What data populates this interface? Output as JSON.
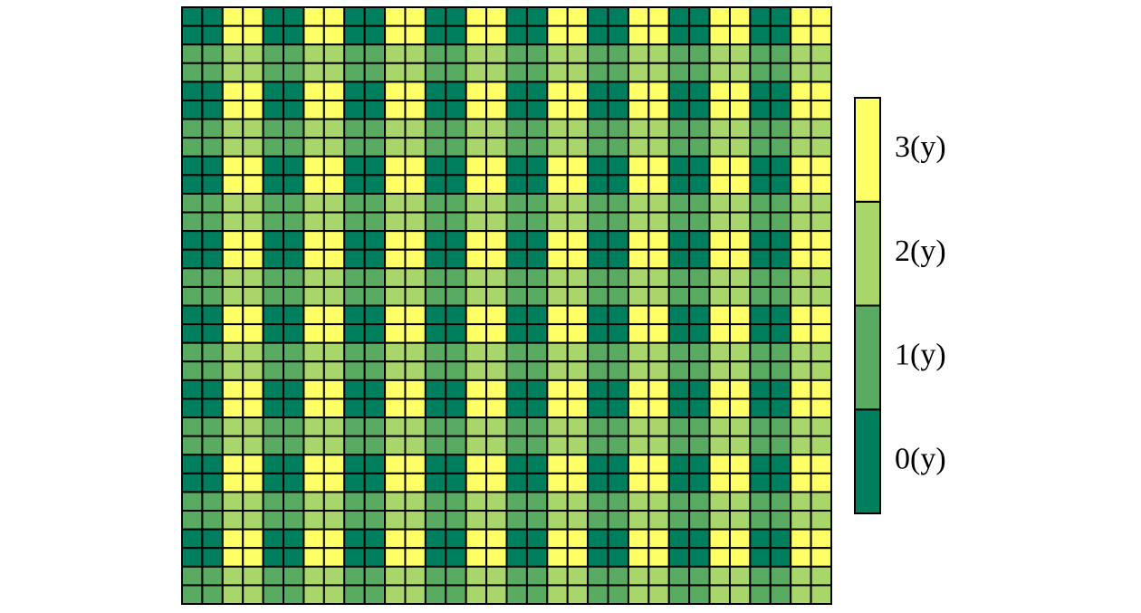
{
  "chart_data": {
    "type": "heatmap",
    "colors": [
      "#007f5f",
      "#5aab62",
      "#a8d66a",
      "#ffff66"
    ],
    "colorbar_ticks": [
      {
        "value": 0,
        "label": "0(y)"
      },
      {
        "value": 1,
        "label": "1(y)"
      },
      {
        "value": 2,
        "label": "2(y)"
      },
      {
        "value": 3,
        "label": "3(y)"
      }
    ],
    "z": [
      [
        0,
        0,
        3,
        3,
        0,
        0,
        3,
        3,
        0,
        0,
        3,
        3,
        0,
        0,
        3,
        3,
        0,
        0,
        3,
        3,
        0,
        0,
        3,
        3,
        0,
        0,
        3,
        3,
        0,
        0,
        3,
        3
      ],
      [
        0,
        0,
        3,
        3,
        0,
        0,
        3,
        3,
        0,
        0,
        3,
        3,
        0,
        0,
        3,
        3,
        0,
        0,
        3,
        3,
        0,
        0,
        3,
        3,
        0,
        0,
        3,
        3,
        0,
        0,
        3,
        3
      ],
      [
        1,
        1,
        2,
        2,
        1,
        1,
        2,
        2,
        1,
        1,
        2,
        2,
        1,
        1,
        2,
        2,
        1,
        1,
        2,
        2,
        1,
        1,
        2,
        2,
        1,
        1,
        2,
        2,
        1,
        1,
        2,
        2
      ],
      [
        1,
        1,
        2,
        2,
        1,
        1,
        2,
        2,
        1,
        1,
        2,
        2,
        1,
        1,
        2,
        2,
        1,
        1,
        2,
        2,
        1,
        1,
        2,
        2,
        1,
        1,
        2,
        2,
        1,
        1,
        2,
        2
      ],
      [
        0,
        0,
        3,
        3,
        0,
        0,
        3,
        3,
        0,
        0,
        3,
        3,
        0,
        0,
        3,
        3,
        0,
        0,
        3,
        3,
        0,
        0,
        3,
        3,
        0,
        0,
        3,
        3,
        0,
        0,
        3,
        3
      ],
      [
        0,
        0,
        3,
        3,
        0,
        0,
        3,
        3,
        0,
        0,
        3,
        3,
        0,
        0,
        3,
        3,
        0,
        0,
        3,
        3,
        0,
        0,
        3,
        3,
        0,
        0,
        3,
        3,
        0,
        0,
        3,
        3
      ],
      [
        1,
        1,
        2,
        2,
        1,
        1,
        2,
        2,
        1,
        1,
        2,
        2,
        1,
        1,
        2,
        2,
        1,
        1,
        2,
        2,
        1,
        1,
        2,
        2,
        1,
        1,
        2,
        2,
        1,
        1,
        2,
        2
      ],
      [
        1,
        1,
        2,
        2,
        1,
        1,
        2,
        2,
        1,
        1,
        2,
        2,
        1,
        1,
        2,
        2,
        1,
        1,
        2,
        2,
        1,
        1,
        2,
        2,
        1,
        1,
        2,
        2,
        1,
        1,
        2,
        2
      ],
      [
        0,
        0,
        3,
        3,
        0,
        0,
        3,
        3,
        0,
        0,
        3,
        3,
        0,
        0,
        3,
        3,
        0,
        0,
        3,
        3,
        0,
        0,
        3,
        3,
        0,
        0,
        3,
        3,
        0,
        0,
        3,
        3
      ],
      [
        0,
        0,
        3,
        3,
        0,
        0,
        3,
        3,
        0,
        0,
        3,
        3,
        0,
        0,
        3,
        3,
        0,
        0,
        3,
        3,
        0,
        0,
        3,
        3,
        0,
        0,
        3,
        3,
        0,
        0,
        3,
        3
      ],
      [
        1,
        1,
        2,
        2,
        1,
        1,
        2,
        2,
        1,
        1,
        2,
        2,
        1,
        1,
        2,
        2,
        1,
        1,
        2,
        2,
        1,
        1,
        2,
        2,
        1,
        1,
        2,
        2,
        1,
        1,
        2,
        2
      ],
      [
        1,
        1,
        2,
        2,
        1,
        1,
        2,
        2,
        1,
        1,
        2,
        2,
        1,
        1,
        2,
        2,
        1,
        1,
        2,
        2,
        1,
        1,
        2,
        2,
        1,
        1,
        2,
        2,
        1,
        1,
        2,
        2
      ],
      [
        0,
        0,
        3,
        3,
        0,
        0,
        3,
        3,
        0,
        0,
        3,
        3,
        0,
        0,
        3,
        3,
        0,
        0,
        3,
        3,
        0,
        0,
        3,
        3,
        0,
        0,
        3,
        3,
        0,
        0,
        3,
        3
      ],
      [
        0,
        0,
        3,
        3,
        0,
        0,
        3,
        3,
        0,
        0,
        3,
        3,
        0,
        0,
        3,
        3,
        0,
        0,
        3,
        3,
        0,
        0,
        3,
        3,
        0,
        0,
        3,
        3,
        0,
        0,
        3,
        3
      ],
      [
        1,
        1,
        2,
        2,
        1,
        1,
        2,
        2,
        1,
        1,
        2,
        2,
        1,
        1,
        2,
        2,
        1,
        1,
        2,
        2,
        1,
        1,
        2,
        2,
        1,
        1,
        2,
        2,
        1,
        1,
        2,
        2
      ],
      [
        1,
        1,
        2,
        2,
        1,
        1,
        2,
        2,
        1,
        1,
        2,
        2,
        1,
        1,
        2,
        2,
        1,
        1,
        2,
        2,
        1,
        1,
        2,
        2,
        1,
        1,
        2,
        2,
        1,
        1,
        2,
        2
      ],
      [
        0,
        0,
        3,
        3,
        0,
        0,
        3,
        3,
        0,
        0,
        3,
        3,
        0,
        0,
        3,
        3,
        0,
        0,
        3,
        3,
        0,
        0,
        3,
        3,
        0,
        0,
        3,
        3,
        0,
        0,
        3,
        3
      ],
      [
        0,
        0,
        3,
        3,
        0,
        0,
        3,
        3,
        0,
        0,
        3,
        3,
        0,
        0,
        3,
        3,
        0,
        0,
        3,
        3,
        0,
        0,
        3,
        3,
        0,
        0,
        3,
        3,
        0,
        0,
        3,
        3
      ],
      [
        1,
        1,
        2,
        2,
        1,
        1,
        2,
        2,
        1,
        1,
        2,
        2,
        1,
        1,
        2,
        2,
        1,
        1,
        2,
        2,
        1,
        1,
        2,
        2,
        1,
        1,
        2,
        2,
        1,
        1,
        2,
        2
      ],
      [
        1,
        1,
        2,
        2,
        1,
        1,
        2,
        2,
        1,
        1,
        2,
        2,
        1,
        1,
        2,
        2,
        1,
        1,
        2,
        2,
        1,
        1,
        2,
        2,
        1,
        1,
        2,
        2,
        1,
        1,
        2,
        2
      ],
      [
        0,
        0,
        3,
        3,
        0,
        0,
        3,
        3,
        0,
        0,
        3,
        3,
        0,
        0,
        3,
        3,
        0,
        0,
        3,
        3,
        0,
        0,
        3,
        3,
        0,
        0,
        3,
        3,
        0,
        0,
        3,
        3
      ],
      [
        0,
        0,
        3,
        3,
        0,
        0,
        3,
        3,
        0,
        0,
        3,
        3,
        0,
        0,
        3,
        3,
        0,
        0,
        3,
        3,
        0,
        0,
        3,
        3,
        0,
        0,
        3,
        3,
        0,
        0,
        3,
        3
      ],
      [
        1,
        1,
        2,
        2,
        1,
        1,
        2,
        2,
        1,
        1,
        2,
        2,
        1,
        1,
        2,
        2,
        1,
        1,
        2,
        2,
        1,
        1,
        2,
        2,
        1,
        1,
        2,
        2,
        1,
        1,
        2,
        2
      ],
      [
        1,
        1,
        2,
        2,
        1,
        1,
        2,
        2,
        1,
        1,
        2,
        2,
        1,
        1,
        2,
        2,
        1,
        1,
        2,
        2,
        1,
        1,
        2,
        2,
        1,
        1,
        2,
        2,
        1,
        1,
        2,
        2
      ],
      [
        0,
        0,
        3,
        3,
        0,
        0,
        3,
        3,
        0,
        0,
        3,
        3,
        0,
        0,
        3,
        3,
        0,
        0,
        3,
        3,
        0,
        0,
        3,
        3,
        0,
        0,
        3,
        3,
        0,
        0,
        3,
        3
      ],
      [
        0,
        0,
        3,
        3,
        0,
        0,
        3,
        3,
        0,
        0,
        3,
        3,
        0,
        0,
        3,
        3,
        0,
        0,
        3,
        3,
        0,
        0,
        3,
        3,
        0,
        0,
        3,
        3,
        0,
        0,
        3,
        3
      ],
      [
        1,
        1,
        2,
        2,
        1,
        1,
        2,
        2,
        1,
        1,
        2,
        2,
        1,
        1,
        2,
        2,
        1,
        1,
        2,
        2,
        1,
        1,
        2,
        2,
        1,
        1,
        2,
        2,
        1,
        1,
        2,
        2
      ],
      [
        1,
        1,
        2,
        2,
        1,
        1,
        2,
        2,
        1,
        1,
        2,
        2,
        1,
        1,
        2,
        2,
        1,
        1,
        2,
        2,
        1,
        1,
        2,
        2,
        1,
        1,
        2,
        2,
        1,
        1,
        2,
        2
      ],
      [
        0,
        0,
        3,
        3,
        0,
        0,
        3,
        3,
        0,
        0,
        3,
        3,
        0,
        0,
        3,
        3,
        0,
        0,
        3,
        3,
        0,
        0,
        3,
        3,
        0,
        0,
        3,
        3,
        0,
        0,
        3,
        3
      ],
      [
        0,
        0,
        3,
        3,
        0,
        0,
        3,
        3,
        0,
        0,
        3,
        3,
        0,
        0,
        3,
        3,
        0,
        0,
        3,
        3,
        0,
        0,
        3,
        3,
        0,
        0,
        3,
        3,
        0,
        0,
        3,
        3
      ],
      [
        1,
        1,
        2,
        2,
        1,
        1,
        2,
        2,
        1,
        1,
        2,
        2,
        1,
        1,
        2,
        2,
        1,
        1,
        2,
        2,
        1,
        1,
        2,
        2,
        1,
        1,
        2,
        2,
        1,
        1,
        2,
        2
      ],
      [
        1,
        1,
        2,
        2,
        1,
        1,
        2,
        2,
        1,
        1,
        2,
        2,
        1,
        1,
        2,
        2,
        1,
        1,
        2,
        2,
        1,
        1,
        2,
        2,
        1,
        1,
        2,
        2,
        1,
        1,
        2,
        2
      ]
    ]
  }
}
